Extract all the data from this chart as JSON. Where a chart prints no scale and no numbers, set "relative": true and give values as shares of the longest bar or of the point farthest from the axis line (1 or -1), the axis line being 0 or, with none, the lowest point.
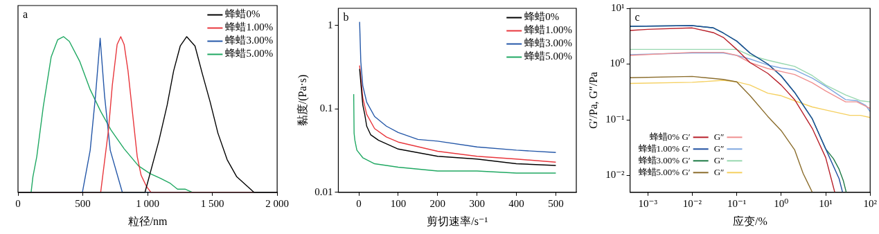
{
  "chart_data": [
    {
      "type": "line",
      "title": "a",
      "xlabel": "粒径/nm",
      "relative": true,
      "legend": "top right",
      "xlim": [
        0,
        2000
      ],
      "xticks": [
        0,
        500,
        {
          "value": 1000,
          "label": "1 000"
        },
        {
          "value": 1500,
          "label": "1 500"
        },
        {
          "value": 2000,
          "label": "2 000"
        }
      ],
      "series": [
        {
          "name": "蜂蜡0%",
          "color": "#000000",
          "x": [
            0,
            980,
            1087,
            1151,
            1201,
            1252,
            1302,
            1366,
            1423,
            1483,
            1543,
            1614,
            1688,
            1821,
            2000
          ],
          "values": [
            0,
            0,
            0.33,
            0.56,
            0.78,
            0.94,
            1,
            0.94,
            0.76,
            0.58,
            0.38,
            0.21,
            0.1,
            0,
            0
          ]
        },
        {
          "name": "蜂蜡1.00%",
          "color": "#e8363c",
          "x": [
            0,
            638,
            698,
            728,
            765,
            793,
            819,
            849,
            889,
            920,
            950,
            990,
            1026,
            2000
          ],
          "values": [
            0,
            0,
            0.4,
            0.69,
            0.95,
            1,
            0.95,
            0.78,
            0.47,
            0.23,
            0.11,
            0.04,
            0,
            0
          ]
        },
        {
          "name": "蜂蜡3.00%",
          "color": "#2457a8",
          "x": [
            0,
            497,
            557,
            598,
            634,
            668,
            712,
            805,
            2000
          ],
          "values": [
            0,
            0,
            0.27,
            0.62,
            0.99,
            0.62,
            0.27,
            0,
            0
          ]
        },
        {
          "name": "蜂蜡5.00%",
          "color": "#1fa862",
          "x": [
            0,
            101,
            115,
            145,
            195,
            256,
            306,
            352,
            396,
            477,
            557,
            638,
            718,
            819,
            930,
            1020,
            1100,
            1171,
            1231,
            1292,
            1346,
            2000
          ],
          "values": [
            0,
            0,
            0.1,
            0.23,
            0.55,
            0.87,
            0.98,
            1,
            0.97,
            0.84,
            0.66,
            0.52,
            0.4,
            0.28,
            0.17,
            0.12,
            0.09,
            0.06,
            0.02,
            0.02,
            0,
            0
          ]
        }
      ]
    },
    {
      "type": "line",
      "title": "b",
      "xlabel": "剪切速率/s⁻¹",
      "ylabel": "黏度/(Pa·s)",
      "log": "y",
      "legend": "top right",
      "xlim": [
        -52,
        552
      ],
      "xticks": [
        0,
        100,
        200,
        300,
        400,
        500
      ],
      "ylim": [
        0.01,
        1.6
      ],
      "yticks": [
        0.01,
        0.1,
        1
      ],
      "series": [
        {
          "name": "蜂蜡0%",
          "color": "#000000",
          "x": [
            2,
            10,
            15,
            20,
            30,
            50,
            100,
            200,
            300,
            400,
            500
          ],
          "values": [
            0.3,
            0.112,
            0.086,
            0.062,
            0.049,
            0.042,
            0.033,
            0.027,
            0.025,
            0.022,
            0.021
          ]
        },
        {
          "name": "蜂蜡1.00%",
          "color": "#e8363c",
          "x": [
            2,
            10,
            20,
            40,
            70,
            100,
            200,
            300,
            400,
            500
          ],
          "values": [
            0.33,
            0.136,
            0.086,
            0.058,
            0.046,
            0.04,
            0.031,
            0.027,
            0.025,
            0.023
          ]
        },
        {
          "name": "蜂蜡3.00%",
          "color": "#2457a8",
          "x": [
            2,
            5,
            10,
            20,
            40,
            70,
            100,
            150,
            200,
            300,
            400,
            500
          ],
          "values": [
            1.1,
            0.37,
            0.19,
            0.12,
            0.081,
            0.062,
            0.052,
            0.043,
            0.041,
            0.035,
            0.032,
            0.03
          ]
        },
        {
          "name": "蜂蜡5.00%",
          "color": "#1fa862",
          "x": [
            -13,
            -12,
            -10,
            -5,
            10,
            40,
            70,
            100,
            200,
            300,
            400,
            500
          ],
          "values": [
            0.15,
            0.051,
            0.042,
            0.032,
            0.026,
            0.022,
            0.021,
            0.02,
            0.018,
            0.018,
            0.017,
            0.017
          ]
        }
      ]
    },
    {
      "type": "line",
      "title": "c",
      "xlabel": "应变/%",
      "ylabel": "G′/Pa, G″/Pa",
      "log": "xy",
      "legend": "bottom left",
      "xlim": [
        0.0004,
        100
      ],
      "xticks": [
        {
          "value": 0.001,
          "label": "10⁻³"
        },
        {
          "value": 0.01,
          "label": "10⁻²"
        },
        {
          "value": 0.1,
          "label": "10⁻¹"
        },
        {
          "value": 1,
          "label": "10⁰"
        },
        {
          "value": 10,
          "label": "10¹"
        },
        {
          "value": 100,
          "label": "10²"
        }
      ],
      "ylim": [
        0.005,
        10
      ],
      "yticks": [
        {
          "value": 0.01,
          "label": "10⁻²"
        },
        {
          "value": 0.1,
          "label": "10⁻¹"
        },
        {
          "value": 1,
          "label": "10⁰"
        },
        {
          "value": 10,
          "label": "10¹"
        }
      ],
      "series": [
        {
          "name": "蜂蜡0% G′",
          "color": "#b8202a",
          "x": [
            0.0004,
            0.001,
            0.01,
            0.03,
            0.05,
            0.1,
            0.2,
            0.5,
            1,
            2,
            5,
            10,
            16
          ],
          "values": [
            4.0,
            4.2,
            4.45,
            3.65,
            3.0,
            1.83,
            1.06,
            0.68,
            0.42,
            0.23,
            0.07,
            0.021,
            0.005
          ]
        },
        {
          "name": "G″",
          "color": "#f09090",
          "x": [
            0.0004,
            0.01,
            0.05,
            0.1,
            0.2,
            0.5,
            2,
            5,
            10,
            28,
            50,
            100
          ],
          "values": [
            1.43,
            1.62,
            1.62,
            1.43,
            1.06,
            0.83,
            0.65,
            0.46,
            0.33,
            0.21,
            0.21,
            0.16
          ]
        },
        {
          "name": "蜂蜡1.00% G′",
          "color": "#1f4fa0",
          "x": [
            0.0004,
            0.01,
            0.03,
            0.05,
            0.1,
            0.2,
            0.5,
            1,
            2,
            5,
            10,
            20,
            24
          ],
          "values": [
            4.76,
            4.9,
            4.45,
            3.6,
            2.58,
            1.57,
            1.0,
            0.61,
            0.31,
            0.104,
            0.03,
            0.0088,
            0.005
          ]
        },
        {
          "name": "G″",
          "color": "#7fa8e0",
          "x": [
            0.0004,
            0.01,
            0.05,
            0.1,
            0.2,
            0.5,
            1,
            2,
            5,
            10,
            28,
            50,
            80,
            100
          ],
          "values": [
            1.47,
            1.58,
            1.58,
            1.43,
            1.23,
            0.96,
            0.85,
            0.79,
            0.56,
            0.4,
            0.23,
            0.22,
            0.18,
            0.14
          ]
        },
        {
          "name": "蜂蜡3.00% G′",
          "color": "#1d7a45",
          "x": [
            0.0004,
            0.01,
            0.03,
            0.05,
            0.1,
            0.2,
            0.5,
            1,
            2,
            5,
            10,
            15,
            20,
            25,
            29
          ],
          "values": [
            4.76,
            4.9,
            4.45,
            3.6,
            2.58,
            1.57,
            1.0,
            0.61,
            0.31,
            0.104,
            0.03,
            0.02,
            0.013,
            0.008,
            0.005
          ]
        },
        {
          "name": "G″",
          "color": "#98d8b0",
          "x": [
            0.0004,
            0.1,
            0.2,
            0.5,
            1,
            2,
            5,
            10,
            28,
            60,
            100
          ],
          "values": [
            1.83,
            1.83,
            1.43,
            1.17,
            1.03,
            0.91,
            0.62,
            0.42,
            0.28,
            0.22,
            0.21
          ]
        },
        {
          "name": "蜂蜡5.00% G′",
          "color": "#8b6d2c",
          "x": [
            0.0004,
            0.01,
            0.05,
            0.1,
            0.2,
            0.5,
            1,
            2,
            3.1,
            5
          ],
          "values": [
            0.57,
            0.6,
            0.53,
            0.48,
            0.27,
            0.115,
            0.064,
            0.029,
            0.011,
            0.005
          ]
        },
        {
          "name": "G″",
          "color": "#f5d060",
          "x": [
            0.0004,
            0.01,
            0.05,
            0.1,
            0.2,
            0.5,
            1,
            2,
            5,
            10,
            35,
            60,
            100
          ],
          "values": [
            0.45,
            0.47,
            0.51,
            0.48,
            0.42,
            0.3,
            0.27,
            0.22,
            0.17,
            0.15,
            0.12,
            0.12,
            0.11
          ]
        }
      ]
    }
  ]
}
